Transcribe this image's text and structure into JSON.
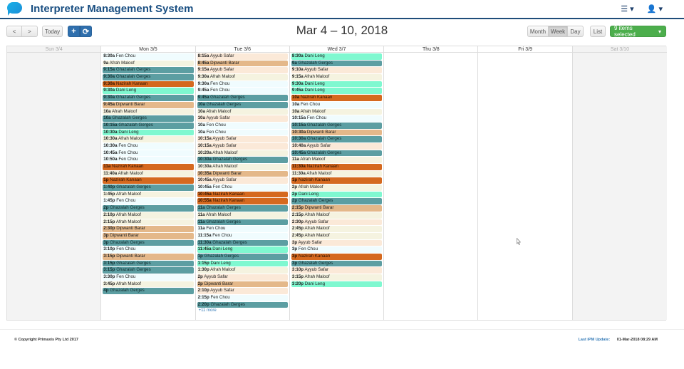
{
  "header": {
    "app_title": "Interpreter Management System",
    "menu_icon_label": "☰ ▾",
    "user_icon_label": "👤 ▾"
  },
  "toolbar": {
    "prev_label": "<",
    "next_label": ">",
    "today_label": "Today",
    "add_label": "+",
    "refresh_label": "⟳",
    "date_range": "Mar 4 – 10, 2018",
    "views": [
      "Month",
      "Week",
      "Day"
    ],
    "active_view": "Week",
    "list_label": "List",
    "filter_label": "9 items selected",
    "filter_caret": "▾"
  },
  "legend_colors": {
    "Fen Chou": "#f0fcfe",
    "Afrah Maloof": "#f5f3e0",
    "Ghazalah Gerges": "#5c9ea2",
    "Nazirah Kanaan": "#d5691f",
    "Dani Leng": "#7ff8d0",
    "Dipwanti Barar": "#e4b88a",
    "Ayyub Safar": "#fbe9d8"
  },
  "days": [
    {
      "label": "Sun 3/4",
      "weekend": true,
      "events": []
    },
    {
      "label": "Mon 3/5",
      "weekend": false,
      "events": [
        {
          "time": "8:30a",
          "name": "Fen Chou"
        },
        {
          "time": "9a",
          "name": "Afrah Maloof"
        },
        {
          "time": "9:15a",
          "name": "Ghazalah Gerges"
        },
        {
          "time": "9:30a",
          "name": "Ghazalah Gerges"
        },
        {
          "time": "9:30a",
          "name": "Nazirah Kanaan"
        },
        {
          "time": "9:30a",
          "name": "Dani Leng"
        },
        {
          "time": "9:30a",
          "name": "Ghazalah Gerges"
        },
        {
          "time": "9:45a",
          "name": "Dipwanti Barar"
        },
        {
          "time": "10a",
          "name": "Afrah Maloof"
        },
        {
          "time": "10a",
          "name": "Ghazalah Gerges"
        },
        {
          "time": "10:15a",
          "name": "Ghazalah Gerges"
        },
        {
          "time": "10:30a",
          "name": "Dani Leng"
        },
        {
          "time": "10:30a",
          "name": "Afrah Maloof"
        },
        {
          "time": "10:30a",
          "name": "Fen Chou"
        },
        {
          "time": "10:45a",
          "name": "Fen Chou"
        },
        {
          "time": "10:50a",
          "name": "Fen Chou"
        },
        {
          "time": "11a",
          "name": "Nazirah Kanaan"
        },
        {
          "time": "11:40a",
          "name": "Afrah Maloof"
        },
        {
          "time": "1p",
          "name": "Nazirah Kanaan"
        },
        {
          "time": "1:40p",
          "name": "Ghazalah Gerges"
        },
        {
          "time": "1:45p",
          "name": "Afrah Maloof"
        },
        {
          "time": "1:45p",
          "name": "Fen Chou"
        },
        {
          "time": "2p",
          "name": "Ghazalah Gerges"
        },
        {
          "time": "2:10p",
          "name": "Afrah Maloof"
        },
        {
          "time": "2:15p",
          "name": "Afrah Maloof"
        },
        {
          "time": "2:30p",
          "name": "Dipwanti Barar"
        },
        {
          "time": "3p",
          "name": "Dipwanti Barar"
        },
        {
          "time": "3p",
          "name": "Ghazalah Gerges"
        },
        {
          "time": "3:10p",
          "name": "Fen Chou"
        },
        {
          "time": "3:15p",
          "name": "Dipwanti Barar"
        },
        {
          "time": "3:15p",
          "name": "Ghazalah Gerges"
        },
        {
          "time": "3:15p",
          "name": "Ghazalah Gerges"
        },
        {
          "time": "3:30p",
          "name": "Fen Chou"
        },
        {
          "time": "3:45p",
          "name": "Afrah Maloof"
        },
        {
          "time": "4p",
          "name": "Ghazalah Gerges"
        }
      ]
    },
    {
      "label": "Tue 3/6",
      "weekend": false,
      "more": "+11 more",
      "events": [
        {
          "time": "8:15a",
          "name": "Ayyub Safar"
        },
        {
          "time": "8:45a",
          "name": "Dipwanti Barar"
        },
        {
          "time": "9:15a",
          "name": "Ayyub Safar"
        },
        {
          "time": "9:30a",
          "name": "Afrah Maloof"
        },
        {
          "time": "9:30a",
          "name": "Fen Chou"
        },
        {
          "time": "9:45a",
          "name": "Fen Chou"
        },
        {
          "time": "9:45a",
          "name": "Ghazalah Gerges"
        },
        {
          "time": "10a",
          "name": "Ghazalah Gerges"
        },
        {
          "time": "10a",
          "name": "Afrah Maloof"
        },
        {
          "time": "10a",
          "name": "Ayyub Safar"
        },
        {
          "time": "10a",
          "name": "Fen Chou"
        },
        {
          "time": "10a",
          "name": "Fen Chou"
        },
        {
          "time": "10:15a",
          "name": "Ayyub Safar"
        },
        {
          "time": "10:15a",
          "name": "Ayyub Safar"
        },
        {
          "time": "10:20a",
          "name": "Afrah Maloof"
        },
        {
          "time": "10:30a",
          "name": "Ghazalah Gerges"
        },
        {
          "time": "10:30a",
          "name": "Afrah Maloof"
        },
        {
          "time": "10:35a",
          "name": "Dipwanti Barar"
        },
        {
          "time": "10:45a",
          "name": "Ayyub Safar"
        },
        {
          "time": "10:45a",
          "name": "Fen Chou"
        },
        {
          "time": "10:45a",
          "name": "Nazirah Kanaan"
        },
        {
          "time": "10:55a",
          "name": "Nazirah Kanaan"
        },
        {
          "time": "11a",
          "name": "Ghazalah Gerges"
        },
        {
          "time": "11a",
          "name": "Afrah Maloof"
        },
        {
          "time": "11a",
          "name": "Ghazalah Gerges"
        },
        {
          "time": "11a",
          "name": "Fen Chou"
        },
        {
          "time": "11:15a",
          "name": "Fen Chou"
        },
        {
          "time": "11:30a",
          "name": "Ghazalah Gerges"
        },
        {
          "time": "11:45a",
          "name": "Dani Leng"
        },
        {
          "time": "1p",
          "name": "Ghazalah Gerges"
        },
        {
          "time": "1:15p",
          "name": "Dani Leng"
        },
        {
          "time": "1:30p",
          "name": "Afrah Maloof"
        },
        {
          "time": "2p",
          "name": "Ayyub Safar"
        },
        {
          "time": "2p",
          "name": "Dipwanti Barar"
        },
        {
          "time": "2:10p",
          "name": "Ayyub Safar"
        },
        {
          "time": "2:15p",
          "name": "Fen Chou"
        },
        {
          "time": "2:20p",
          "name": "Ghazalah Gerges"
        }
      ]
    },
    {
      "label": "Wed 3/7",
      "weekend": false,
      "events": [
        {
          "time": "8:30a",
          "name": "Dani Leng"
        },
        {
          "time": "9a",
          "name": "Ghazalah Gerges"
        },
        {
          "time": "9:10a",
          "name": "Ayyub Safar"
        },
        {
          "time": "9:15a",
          "name": "Afrah Maloof"
        },
        {
          "time": "9:30a",
          "name": "Dani Leng"
        },
        {
          "time": "9:45a",
          "name": "Dani Leng"
        },
        {
          "time": "10a",
          "name": "Nazirah Kanaan"
        },
        {
          "time": "10a",
          "name": "Fen Chou"
        },
        {
          "time": "10a",
          "name": "Afrah Maloof"
        },
        {
          "time": "10:15a",
          "name": "Fen Chou"
        },
        {
          "time": "10:15a",
          "name": "Ghazalah Gerges"
        },
        {
          "time": "10:30a",
          "name": "Dipwanti Barar"
        },
        {
          "time": "10:30a",
          "name": "Ghazalah Gerges"
        },
        {
          "time": "10:40a",
          "name": "Ayyub Safar"
        },
        {
          "time": "10:45a",
          "name": "Ghazalah Gerges"
        },
        {
          "time": "11a",
          "name": "Afrah Maloof"
        },
        {
          "time": "11:30a",
          "name": "Nazirah Kanaan"
        },
        {
          "time": "11:30a",
          "name": "Afrah Maloof"
        },
        {
          "time": "1p",
          "name": "Nazirah Kanaan"
        },
        {
          "time": "2p",
          "name": "Afrah Maloof"
        },
        {
          "time": "2p",
          "name": "Dani Leng"
        },
        {
          "time": "2p",
          "name": "Ghazalah Gerges"
        },
        {
          "time": "2:15p",
          "name": "Dipwanti Barar"
        },
        {
          "time": "2:15p",
          "name": "Afrah Maloof"
        },
        {
          "time": "2:30p",
          "name": "Ayyub Safar"
        },
        {
          "time": "2:45p",
          "name": "Afrah Maloof"
        },
        {
          "time": "2:45p",
          "name": "Afrah Maloof"
        },
        {
          "time": "3p",
          "name": "Ayyub Safar"
        },
        {
          "time": "3p",
          "name": "Fen Chou"
        },
        {
          "time": "3p",
          "name": "Nazirah Kanaan"
        },
        {
          "time": "3p",
          "name": "Ghazalah Gerges"
        },
        {
          "time": "3:10p",
          "name": "Ayyub Safar"
        },
        {
          "time": "3:15p",
          "name": "Afrah Maloof"
        },
        {
          "time": "3:20p",
          "name": "Dani Leng"
        }
      ]
    },
    {
      "label": "Thu 3/8",
      "weekend": false,
      "events": []
    },
    {
      "label": "Fri 3/9",
      "weekend": false,
      "events": []
    },
    {
      "label": "Sat 3/10",
      "weekend": true,
      "events": []
    }
  ],
  "footer": {
    "copyright": "© Copyright Primaxis Pty Ltd 2017",
    "ipm_label": "Last iPM Update:",
    "ipm_value": "01-Mar-2018 08:29 AM"
  }
}
